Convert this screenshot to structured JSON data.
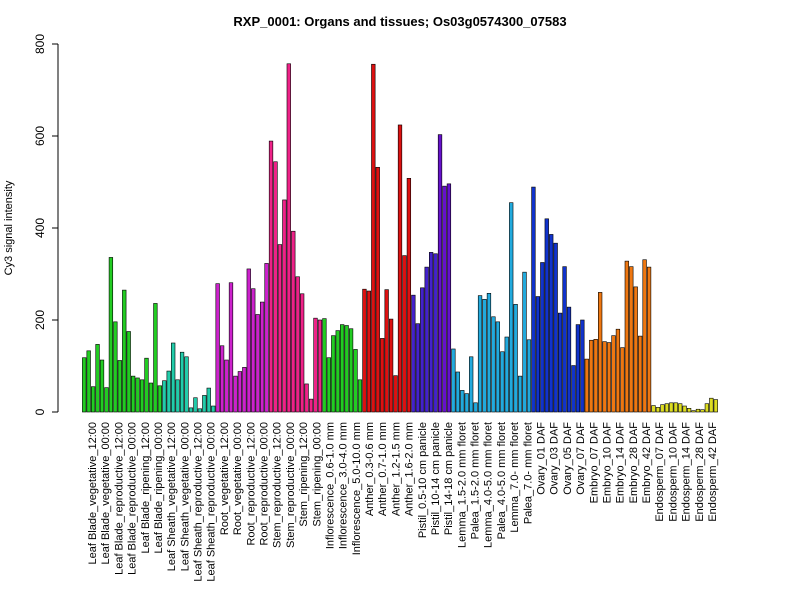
{
  "chart_data": {
    "type": "bar",
    "title": "RXP_0001: Organs and tissues; Os03g0574300_07583",
    "ylabel": "Cy3 signal intensity",
    "ylim": [
      0,
      800
    ],
    "yticks": [
      0,
      200,
      400,
      600,
      800
    ],
    "categories": [
      "Leaf Blade_vegetative_12:00",
      "Leaf Blade_vegetative_00:00",
      "Leaf Blade_reproductive_12:00",
      "Leaf Blade_reproductive_00:00",
      "Leaf Blade_ripening_12:00",
      "Leaf Blade_ripening_00:00",
      "Leaf Sheath_vegetative_12:00",
      "Leaf Sheath_vegetative_00:00",
      "Leaf Sheath_reproductive_12:00",
      "Leaf Sheath_reproductive_00:00",
      "Root_vegetative_12:00",
      "Root_vegetative_00:00",
      "Root_reproductive_12:00",
      "Root_reproductive_00:00",
      "Stem_reproductive_12:00",
      "Stem_reproductive_00:00",
      "Stem_ripening_12:00",
      "Stem_ripening_00:00",
      "Inflorescence_0.6-1.0 mm",
      "Inflorescence_3.0-4.0 mm",
      "Inflorescence_5.0-10.0 mm",
      "Anther_0.3-0.6 mm",
      "Anther_0.7-1.0 mm",
      "Anther_1.2-1.5 mm",
      "Anther_1.6-2.0 mm",
      "Pistil_0.5-10 cm panicle",
      "Pistil_10-14 cm panicle",
      "Pistil_14-18 cm panicle",
      "Lemma_1.5-2.0 mm floret",
      "Palea_1.5-2.0 mm floret",
      "Lemma_4.0-5.0 mm floret",
      "Palea_4.0-5.0 mm floret",
      "Lemma_7.0- mm floret",
      "Palea_7.0- mm floret",
      "Ovary_01 DAF",
      "Ovary_03 DAF",
      "Ovary_05 DAF",
      "Ovary_07 DAF",
      "Embryo_07 DAF",
      "Embryo_10 DAF",
      "Embryo_14 DAF",
      "Embryo_28 DAF",
      "Embryo_42 DAF",
      "Endosperm_07 DAF",
      "Endosperm_10 DAF",
      "Endosperm_14 DAF",
      "Endosperm_28 DAF",
      "Endosperm_42 DAF"
    ],
    "labels_shown": [
      "Leaf Blade_vegetative_12:00",
      "Leaf Blade_vegetative_00:00",
      "Leaf Blade_reproductive_12:00",
      "Leaf Blade_reproductive_00:00",
      "Leaf Blade_ripening_12:00",
      "Leaf Blade_ripening_00:00",
      "Leaf Sheath_vegetative_12:00",
      "Leaf Sheath_vegetative_00:00",
      "Leaf Sheath_reproductive_12:00",
      "Leaf Sheath_reproductive_00:00",
      "Root_vegetative_12:00",
      "Root_vegetative_00:00",
      "Root_reproductive_12:00",
      "Root_reproductive_00:00",
      "Stem_reproductive_12:00",
      "Stem_reproductive_00:00",
      "Stem_ripening_12:00",
      "Stem_ripening_00:00",
      "Inflorescence_0.6-1.0 mm",
      "Inflorescence_3.0-4.0 mm",
      "Inflorescence_5.0-10.0 mm",
      "Anther_0.3-0.6 mm",
      "Anther_0.7-1.0 mm",
      "Anther_1.2-1.5 mm",
      "Anther_1.6-2.0 mm",
      "Pistil_0.5-10 cm panicle",
      "Pistil_10-14 cm panicle",
      "Pistil_14-18 cm panicle",
      "Lemma_1.5-2.0 mm floret",
      "Palea_1.5-2.0 mm floret",
      "Lemma_4.0-5.0 mm floret",
      "Palea_4.0-5.0 mm floret",
      "Lemma_7.0- mm floret",
      "Palea_7.0- mm floret",
      "Ovary_01 DAF",
      "Ovary_03 DAF",
      "Ovary_05 DAF",
      "Ovary_07 DAF",
      "Embryo_07 DAF",
      "Embryo_10 DAF",
      "Embryo_14 DAF",
      "Embryo_28 DAF",
      "Embryo_42 DAF",
      "Endosperm_07 DAF",
      "Endosperm_10 DAF",
      "Endosperm_14 DAF",
      "Endosperm_28 DAF",
      "Endosperm_42 DAF"
    ],
    "groups": [
      {
        "color": "#22cc22",
        "values": [
          118,
          133,
          55
        ]
      },
      {
        "color": "#22cc22",
        "values": [
          147,
          113,
          53
        ]
      },
      {
        "color": "#22cc22",
        "values": [
          336,
          196,
          112
        ]
      },
      {
        "color": "#22cc22",
        "values": [
          265,
          175,
          78
        ]
      },
      {
        "color": "#22cc22",
        "values": [
          74,
          70,
          117
        ]
      },
      {
        "color": "#22cc22",
        "values": [
          63,
          236,
          57
        ]
      },
      {
        "color": "#22ccaa",
        "values": [
          68,
          89,
          150
        ]
      },
      {
        "color": "#22ccaa",
        "values": [
          70,
          130,
          120
        ]
      },
      {
        "color": "#22ccaa",
        "values": [
          9,
          31,
          7
        ]
      },
      {
        "color": "#22ccaa",
        "values": [
          36,
          52,
          13
        ]
      },
      {
        "color": "#cc22cc",
        "values": [
          279,
          144,
          113
        ]
      },
      {
        "color": "#cc22cc",
        "values": [
          281,
          78,
          88
        ]
      },
      {
        "color": "#cc22cc",
        "values": [
          97,
          311,
          268
        ]
      },
      {
        "color": "#cc22cc",
        "values": [
          212,
          239,
          323
        ]
      },
      {
        "color": "#ee2288",
        "values": [
          589,
          544,
          364
        ]
      },
      {
        "color": "#ee2288",
        "values": [
          461,
          757,
          393
        ]
      },
      {
        "color": "#ee2288",
        "values": [
          294,
          257,
          61
        ]
      },
      {
        "color": "#ee2288",
        "values": [
          28,
          204,
          200
        ]
      },
      {
        "color": "#22cc22",
        "values": [
          203,
          118,
          166
        ]
      },
      {
        "color": "#22cc22",
        "values": [
          177,
          190,
          188
        ]
      },
      {
        "color": "#22cc22",
        "values": [
          181,
          136,
          70
        ]
      },
      {
        "color": "#dd1111",
        "values": [
          267,
          263
        ]
      },
      {
        "color": "#dd1111",
        "values": [
          756,
          532,
          160
        ]
      },
      {
        "color": "#dd1111",
        "values": [
          266,
          202,
          79
        ]
      },
      {
        "color": "#dd1111",
        "values": [
          624,
          340,
          508
        ]
      },
      {
        "color": "#4422cc",
        "values": [
          254,
          192,
          270
        ]
      },
      {
        "color": "#4422cc",
        "values": [
          315,
          347,
          344
        ]
      },
      {
        "color": "#6611cc",
        "values": [
          603,
          491,
          496
        ]
      },
      {
        "color": "#22aadd",
        "values": [
          137,
          87,
          47
        ]
      },
      {
        "color": "#22aadd",
        "values": [
          40,
          120,
          20
        ]
      },
      {
        "color": "#22aadd",
        "values": [
          253,
          245,
          258
        ]
      },
      {
        "color": "#22aadd",
        "values": [
          207,
          196,
          131
        ]
      },
      {
        "color": "#22aadd",
        "values": [
          163,
          455,
          234
        ]
      },
      {
        "color": "#22aadd",
        "values": [
          78,
          304,
          157
        ]
      },
      {
        "color": "#1133cc",
        "values": [
          489,
          251,
          325
        ]
      },
      {
        "color": "#1133cc",
        "values": [
          420,
          386,
          367
        ]
      },
      {
        "color": "#1133cc",
        "values": [
          215,
          316,
          228
        ]
      },
      {
        "color": "#1133cc",
        "values": [
          101,
          190,
          200
        ]
      },
      {
        "color": "#ee7711",
        "values": [
          115,
          156,
          158
        ]
      },
      {
        "color": "#ee7711",
        "values": [
          260,
          153,
          151
        ]
      },
      {
        "color": "#ee7711",
        "values": [
          166,
          180,
          140
        ]
      },
      {
        "color": "#ee7711",
        "values": [
          328,
          316,
          272
        ]
      },
      {
        "color": "#ee7711",
        "values": [
          165,
          331,
          315
        ]
      },
      {
        "color": "#dddd22",
        "values": [
          14,
          10,
          16
        ]
      },
      {
        "color": "#dddd22",
        "values": [
          18,
          20,
          20
        ]
      },
      {
        "color": "#dddd22",
        "values": [
          18,
          13,
          8
        ]
      },
      {
        "color": "#dddd22",
        "values": [
          3,
          6,
          5
        ]
      },
      {
        "color": "#dddd22",
        "values": [
          18,
          30,
          27
        ]
      }
    ]
  }
}
